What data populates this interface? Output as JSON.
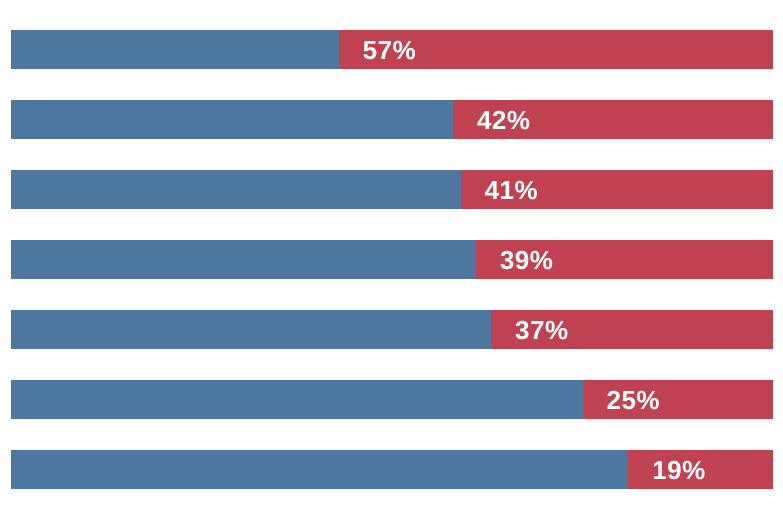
{
  "chart_data": {
    "type": "bar",
    "orientation": "horizontal",
    "stacked": true,
    "title": "",
    "xlabel": "",
    "ylabel": "",
    "xlim": [
      0,
      100
    ],
    "grid": false,
    "axes_visible": false,
    "legend": "none",
    "background_color": "#ffffff",
    "label_color": "#ffffff",
    "series": [
      {
        "name": "blue",
        "color": "#4d77a0",
        "values": [
          43,
          58,
          59,
          61,
          63,
          75,
          81
        ]
      },
      {
        "name": "red",
        "color": "#c0414f",
        "values": [
          57,
          42,
          41,
          39,
          37,
          25,
          19
        ]
      }
    ],
    "labels": [
      "57%",
      "42%",
      "41%",
      "39%",
      "37%",
      "25%",
      "19%"
    ],
    "label_position": "inside-left-of-red-segment"
  }
}
